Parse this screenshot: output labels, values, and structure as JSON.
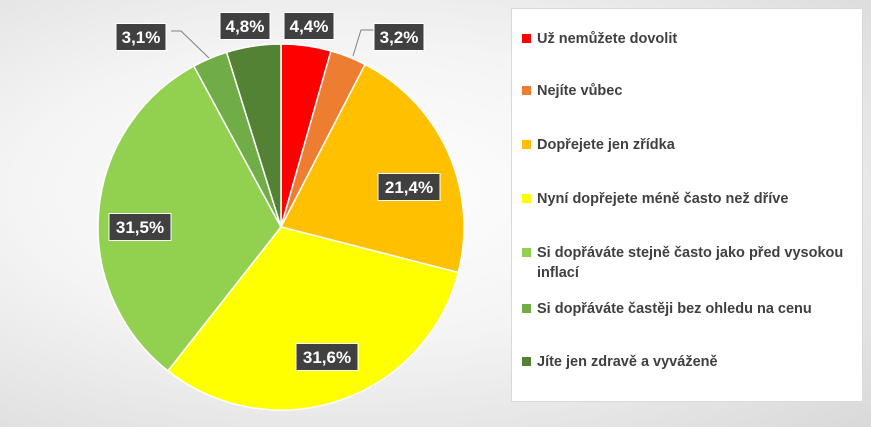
{
  "chart_data": {
    "type": "pie",
    "title": "",
    "legend_position": "right",
    "categories": [
      "Už nemůžete dovolit",
      "Nejíte vůbec",
      "Dopřejete jen zřídka",
      "Nyní dopřejete méně často než dříve",
      "Si dopřáváte stejně často jako před vysokou inflací",
      "Si dopřáváte častěji bez ohledu na cenu",
      "Jíte jen zdravě a vyváženě"
    ],
    "values": [
      4.4,
      3.2,
      21.4,
      31.6,
      31.5,
      3.1,
      4.8
    ],
    "data_labels": [
      "4,4%",
      "3,2%",
      "21,4%",
      "31,6%",
      "31,5%",
      "3,1%",
      "4,8%"
    ],
    "colors": [
      "#ff0000",
      "#ed7d31",
      "#ffc000",
      "#ffff00",
      "#92d050",
      "#70ad47",
      "#548235"
    ]
  }
}
